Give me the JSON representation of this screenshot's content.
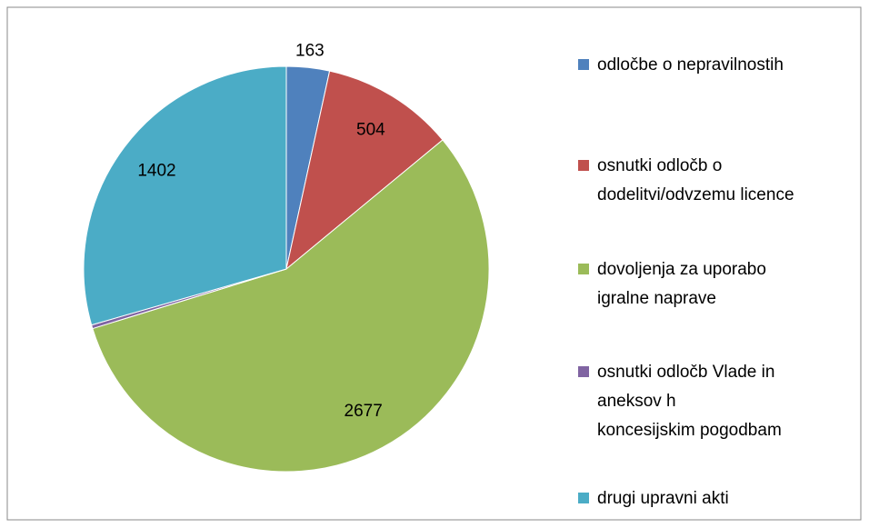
{
  "chart_data": {
    "type": "pie",
    "categories": [
      "odločbe o nepravilnostih",
      "osnutki odločb o\ndodelitvi/odvzemu licence",
      "dovoljenja za uporabo\nigralne naprave",
      "osnutki odločb Vlade in\naneksov h\nkoncesijskim pogodbam",
      "drugi upravni akti"
    ],
    "values": [
      163,
      504,
      2677,
      14,
      1402
    ],
    "value_labels": [
      "163",
      "504",
      "2677",
      null,
      "1402"
    ],
    "colors": [
      "#4f81bd",
      "#c0504d",
      "#9bbb59",
      "#8064a2",
      "#4bacc6"
    ],
    "legend": "right"
  }
}
